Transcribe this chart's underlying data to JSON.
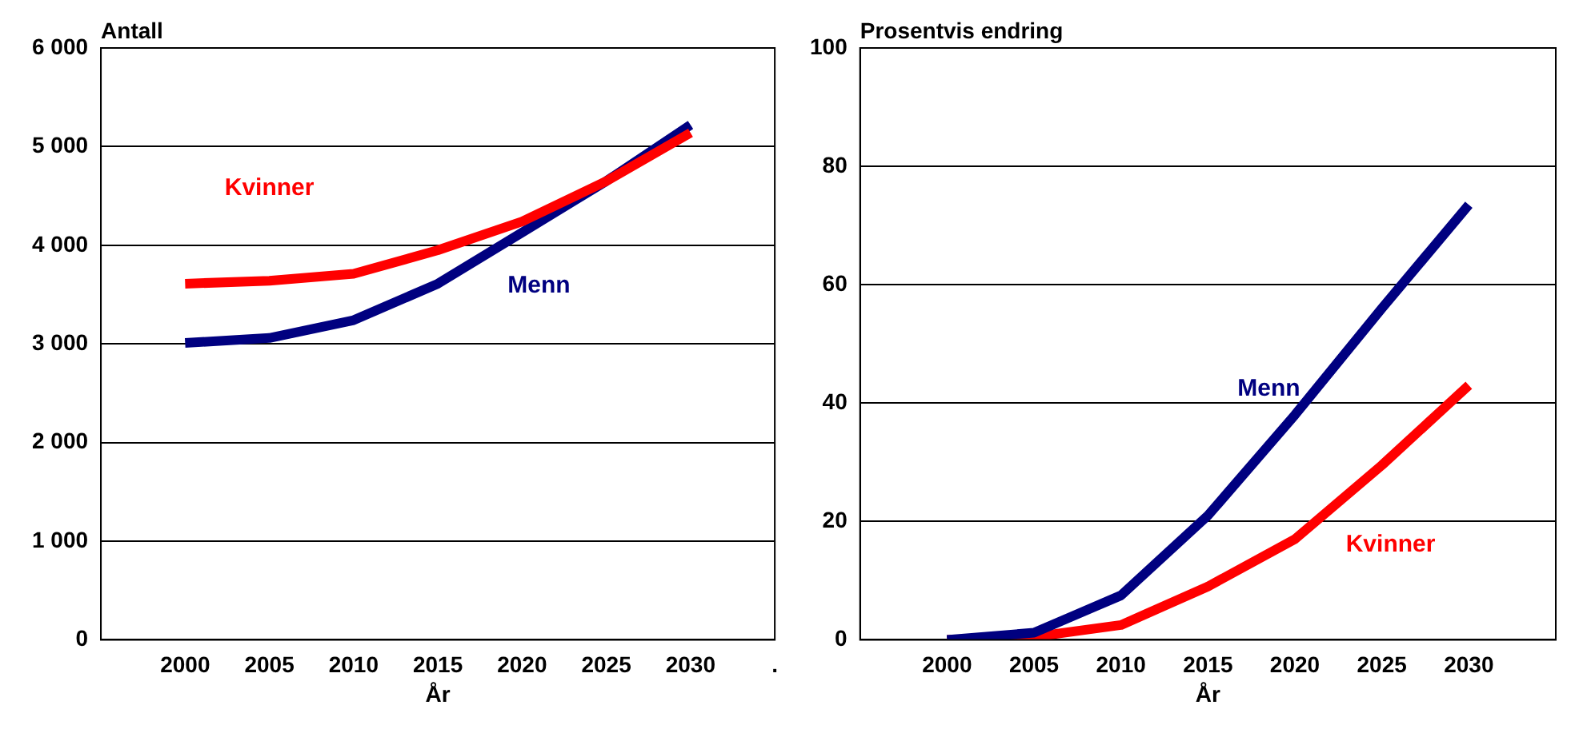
{
  "chart_data": [
    {
      "type": "line",
      "ylabel": "Antall",
      "xlabel": "År",
      "categories": [
        null,
        "2000",
        "2005",
        "2010",
        "2015",
        "2020",
        "2025",
        "2030",
        "."
      ],
      "series": [
        {
          "name": "Kvinner",
          "color": "#ff0000",
          "values": [
            null,
            3610,
            3640,
            3710,
            3950,
            4240,
            4650,
            5140,
            null
          ]
        },
        {
          "name": "Menn",
          "color": "#000080",
          "values": [
            null,
            3010,
            3060,
            3240,
            3610,
            4130,
            4650,
            5220,
            null
          ]
        }
      ],
      "ylim": [
        0,
        6000
      ],
      "yticks": [
        {
          "value": 0,
          "label": "0"
        },
        {
          "value": 1000,
          "label": "1 000"
        },
        {
          "value": 2000,
          "label": "2 000"
        },
        {
          "value": 3000,
          "label": "3 000"
        },
        {
          "value": 4000,
          "label": "4 000"
        },
        {
          "value": 5000,
          "label": "5 000"
        },
        {
          "value": 6000,
          "label": "6 000"
        }
      ],
      "grid": "y",
      "legend": false,
      "marker": "none",
      "line_style": "solid"
    },
    {
      "type": "line",
      "ylabel": "Prosentvis endring",
      "xlabel": "År",
      "categories": [
        null,
        "2000",
        "2005",
        "2010",
        "2015",
        "2020",
        "2025",
        "2030",
        null
      ],
      "series": [
        {
          "name": "Menn",
          "color": "#000080",
          "values": [
            null,
            0,
            1.2,
            7.5,
            21,
            38,
            56,
            73.5,
            null
          ]
        },
        {
          "name": "Kvinner",
          "color": "#ff0000",
          "values": [
            null,
            0,
            0.5,
            2.5,
            9,
            17,
            29.5,
            43,
            null
          ]
        }
      ],
      "ylim": [
        0,
        100
      ],
      "yticks": [
        0,
        20,
        40,
        60,
        80,
        100
      ],
      "grid": "y",
      "legend": false,
      "marker": "none",
      "line_style": "solid"
    }
  ]
}
